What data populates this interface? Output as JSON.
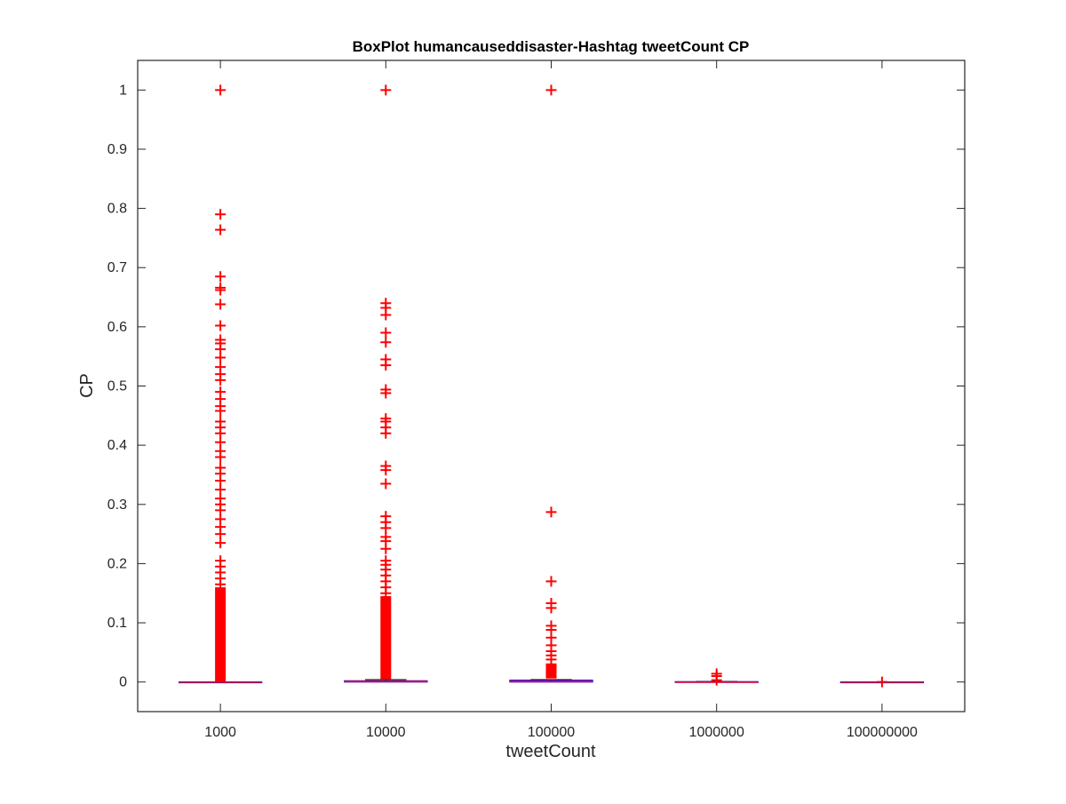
{
  "chart_data": {
    "type": "box",
    "title": "BoxPlot humancauseddisaster-Hashtag tweetCount CP",
    "xlabel": "tweetCount",
    "ylabel": "CP",
    "ylim": [
      -0.05,
      1.05
    ],
    "yticks": [
      "0",
      "0.1",
      "0.2",
      "0.3",
      "0.4",
      "0.5",
      "0.6",
      "0.7",
      "0.8",
      "0.9",
      "1"
    ],
    "categories": [
      "1000",
      "10000",
      "100000",
      "1000000",
      "100000000"
    ],
    "grid": false,
    "colors": {
      "outlier": "#ff0000",
      "median": "#ff0000",
      "box": "#0000ff",
      "whisker": "#000000",
      "axis": "#262626"
    },
    "boxes": [
      {
        "category": "1000",
        "q1": 0,
        "median": 0,
        "q3": 0,
        "whisker_low": 0,
        "whisker_high": 0,
        "outliers": [
          1.0,
          0.79,
          0.764,
          0.685,
          0.666,
          0.662,
          0.638,
          0.602,
          0.578,
          0.572,
          0.562,
          0.548,
          0.532,
          0.52,
          0.51,
          0.49,
          0.478,
          0.466,
          0.458,
          0.44,
          0.43,
          0.42,
          0.405,
          0.39,
          0.38,
          0.362,
          0.352,
          0.34,
          0.325,
          0.31,
          0.3,
          0.29,
          0.275,
          0.262,
          0.25,
          0.235,
          0.205,
          0.195,
          0.185,
          0.175,
          0.165
        ],
        "outlier_dense_range": [
          0,
          0.16
        ]
      },
      {
        "category": "10000",
        "q1": 0,
        "median": 0.001,
        "q3": 0.002,
        "whisker_low": 0,
        "whisker_high": 0.004,
        "outliers": [
          1.0,
          0.64,
          0.632,
          0.62,
          0.59,
          0.574,
          0.545,
          0.535,
          0.494,
          0.488,
          0.445,
          0.44,
          0.43,
          0.42,
          0.365,
          0.358,
          0.335,
          0.28,
          0.27,
          0.26,
          0.245,
          0.238,
          0.225,
          0.205,
          0.198,
          0.19,
          0.18,
          0.17,
          0.16,
          0.15
        ],
        "outlier_dense_range": [
          0.005,
          0.145
        ]
      },
      {
        "category": "100000",
        "q1": 0,
        "median": 0.001,
        "q3": 0.003,
        "whisker_low": 0,
        "whisker_high": 0.004,
        "outliers": [
          1.0,
          0.287,
          0.17,
          0.133,
          0.125,
          0.095,
          0.088,
          0.075,
          0.062,
          0.052,
          0.045,
          0.038,
          0.03
        ],
        "outlier_dense_range": [
          0.006,
          0.03
        ]
      },
      {
        "category": "1000000",
        "q1": 0,
        "median": 0,
        "q3": 0.0005,
        "whisker_low": 0,
        "whisker_high": 0.001,
        "outliers": [
          0.014,
          0.01,
          0.003
        ],
        "outlier_dense_range": null
      },
      {
        "category": "100000000",
        "q1": 0,
        "median": 0,
        "q3": 0,
        "whisker_low": 0,
        "whisker_high": 0,
        "outliers": [
          0
        ],
        "outlier_dense_range": null
      }
    ]
  }
}
